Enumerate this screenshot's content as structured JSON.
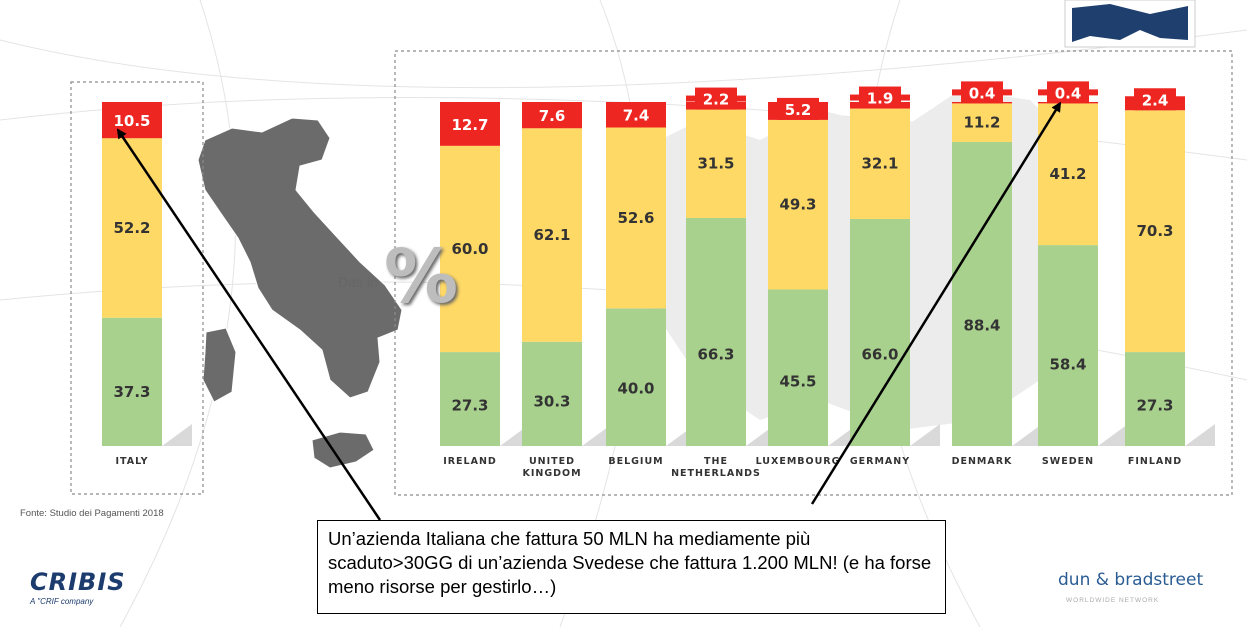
{
  "source_note": "Fonte: Studio dei Pagamenti 2018",
  "callout": "Un’azienda Italiana che fattura 50 MLN ha mediamente più scaduto>30GG di un’azienda Svedese che fattura 1.200 MLN!        (e ha forse meno risorse per gestirlo…)",
  "watermark": {
    "dati_in": "Dati in",
    "percent": "%"
  },
  "logos": {
    "left": "CRIBIS",
    "left_sub": "A \"CRIF company",
    "right": "dun & bradstreet",
    "right_sub": "WORLDWIDE NETWORK"
  },
  "colors": {
    "green": "#a9d18e",
    "yellow": "#ffd966",
    "red": "#ee2622"
  },
  "chart_data": {
    "type": "bar",
    "stacked": true,
    "categories": [
      "ITALY",
      "IRELAND",
      "UNITED KINGDOM",
      "BELGIUM",
      "THE NETHERLANDS",
      "LUXEMBOURG",
      "GERMANY",
      "DENMARK",
      "SWEDEN",
      "FINLAND"
    ],
    "series": [
      {
        "color": "#a9d18e",
        "values": [
          37.3,
          27.3,
          30.3,
          40.0,
          66.3,
          45.5,
          66.0,
          88.4,
          58.4,
          27.3
        ]
      },
      {
        "color": "#ffd966",
        "values": [
          52.2,
          60.0,
          62.1,
          52.6,
          31.5,
          49.3,
          32.1,
          11.2,
          41.2,
          70.3
        ]
      },
      {
        "color": "#ee2622",
        "values": [
          10.5,
          12.7,
          7.6,
          7.4,
          2.2,
          5.2,
          1.9,
          0.4,
          0.4,
          2.4
        ]
      }
    ],
    "ylim": [
      0,
      100
    ],
    "title": "",
    "xlabel": "",
    "ylabel": "",
    "annotations": [
      {
        "from": "callout",
        "to_category": "ITALY",
        "to_series": 2
      },
      {
        "from": "callout",
        "to_category": "SWEDEN",
        "to_series": 2
      }
    ]
  }
}
